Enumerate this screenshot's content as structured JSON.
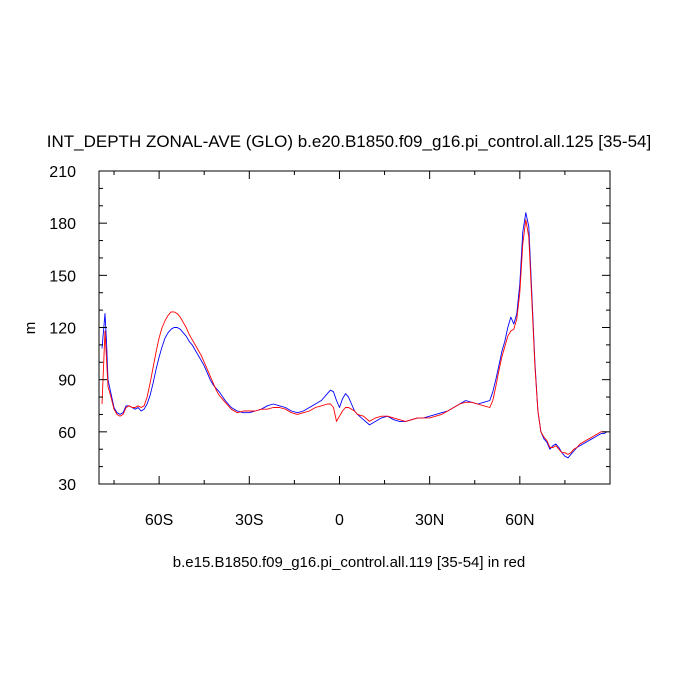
{
  "chart_data": {
    "type": "line",
    "title": "INT_DEPTH ZONAL-AVE (GLO) b.e20.B1850.f09_g16.pi_control.all.125 [35-54]",
    "xlabel": "b.e15.B1850.f09_g16.pi_control.all.119 [35-54] in red",
    "ylabel": "m",
    "xlim": [
      -80,
      90
    ],
    "ylim": [
      30,
      210
    ],
    "xticks": [
      -60,
      -30,
      0,
      30,
      60
    ],
    "xtick_labels": [
      "60S",
      "30S",
      "0",
      "30N",
      "60N"
    ],
    "yticks": [
      30,
      60,
      90,
      120,
      150,
      180,
      210
    ],
    "ytick_labels": [
      "30",
      "60",
      "90",
      "120",
      "150",
      "180",
      "210"
    ],
    "grid": false,
    "series": [
      {
        "color": "#0000ff",
        "x": [
          -79,
          -78,
          -77.5,
          -77,
          -76,
          -75,
          -74,
          -73,
          -72,
          -71,
          -70,
          -69,
          -68,
          -67,
          -66,
          -65,
          -64,
          -63,
          -62,
          -61,
          -60,
          -59,
          -58,
          -57,
          -56,
          -55,
          -54,
          -53,
          -52,
          -51,
          -50,
          -49,
          -48,
          -47,
          -46,
          -45,
          -44,
          -43,
          -42,
          -41,
          -40,
          -38,
          -36,
          -34,
          -32,
          -30,
          -28,
          -26,
          -24,
          -22,
          -20,
          -18,
          -16,
          -14,
          -12,
          -10,
          -8,
          -6,
          -4,
          -3,
          -2,
          -1,
          0,
          1,
          2,
          3,
          4,
          5,
          6,
          8,
          10,
          12,
          14,
          16,
          18,
          20,
          22,
          24,
          26,
          28,
          30,
          32,
          34,
          36,
          38,
          40,
          42,
          44,
          46,
          48,
          50,
          51,
          52,
          53,
          54,
          55,
          56,
          57,
          58,
          59,
          60,
          61,
          62,
          63,
          64,
          65,
          66,
          67,
          68,
          69,
          70,
          71,
          72,
          73,
          74,
          75,
          76,
          77,
          78,
          79,
          80,
          81,
          82,
          83,
          84,
          85,
          86,
          87,
          88,
          89
        ],
        "y": [
          108,
          128,
          112,
          90,
          82,
          74,
          71,
          70,
          71,
          75,
          75,
          74,
          73,
          74,
          72,
          73,
          76,
          81,
          88,
          96,
          103,
          109,
          114,
          117,
          119,
          120,
          120,
          119,
          117,
          115,
          112,
          110,
          107,
          104,
          101,
          98,
          94,
          90,
          87,
          85,
          83,
          78,
          74,
          72,
          71,
          71,
          72,
          73,
          75,
          76,
          75,
          74,
          72,
          71,
          72,
          74,
          76,
          78,
          82,
          84,
          83,
          78,
          74,
          79,
          82,
          80,
          76,
          72,
          70,
          67,
          64,
          66,
          68,
          69,
          67,
          66,
          66,
          67,
          68,
          68,
          69,
          70,
          71,
          72,
          74,
          76,
          78,
          77,
          76,
          77,
          78,
          83,
          90,
          98,
          106,
          112,
          120,
          126,
          122,
          128,
          145,
          175,
          186,
          178,
          140,
          100,
          72,
          60,
          56,
          54,
          50,
          52,
          53,
          51,
          48,
          46,
          45,
          47,
          49,
          51,
          52,
          53,
          54,
          55,
          56,
          57,
          58,
          59,
          59,
          60
        ]
      },
      {
        "color": "#ff0000",
        "x": [
          -79,
          -78,
          -77.5,
          -77,
          -76,
          -75,
          -74,
          -73,
          -72,
          -71,
          -70,
          -69,
          -68,
          -67,
          -66,
          -65,
          -64,
          -63,
          -62,
          -61,
          -60,
          -59,
          -58,
          -57,
          -56,
          -55,
          -54,
          -53,
          -52,
          -51,
          -50,
          -49,
          -48,
          -47,
          -46,
          -45,
          -44,
          -43,
          -42,
          -41,
          -40,
          -38,
          -36,
          -34,
          -32,
          -30,
          -28,
          -26,
          -24,
          -22,
          -20,
          -18,
          -16,
          -14,
          -12,
          -10,
          -8,
          -6,
          -4,
          -3,
          -2,
          -1,
          0,
          1,
          2,
          3,
          4,
          5,
          6,
          8,
          10,
          12,
          14,
          16,
          18,
          20,
          22,
          24,
          26,
          28,
          30,
          32,
          34,
          36,
          38,
          40,
          42,
          44,
          46,
          48,
          50,
          51,
          52,
          53,
          54,
          55,
          56,
          57,
          58,
          59,
          60,
          61,
          62,
          63,
          64,
          65,
          66,
          67,
          68,
          69,
          70,
          71,
          72,
          73,
          74,
          75,
          76,
          77,
          78,
          79,
          80,
          81,
          82,
          83,
          84,
          85,
          86,
          87,
          88,
          89
        ],
        "y": [
          76,
          118,
          102,
          86,
          80,
          73,
          70,
          69,
          70,
          74,
          75,
          74,
          74,
          75,
          74,
          75,
          80,
          88,
          97,
          106,
          114,
          120,
          124,
          127,
          129,
          129,
          128,
          126,
          123,
          120,
          116,
          113,
          110,
          107,
          104,
          100,
          96,
          92,
          88,
          84,
          81,
          77,
          73,
          71,
          72,
          72,
          72,
          73,
          73,
          74,
          74,
          73,
          71,
          70,
          71,
          72,
          74,
          75,
          76,
          76,
          74,
          66,
          69,
          72,
          74,
          74,
          73,
          72,
          70,
          69,
          66,
          68,
          69,
          69,
          68,
          67,
          66,
          67,
          68,
          68,
          68,
          69,
          70,
          72,
          74,
          76,
          77,
          77,
          76,
          75,
          74,
          78,
          86,
          95,
          103,
          109,
          115,
          118,
          119,
          125,
          140,
          168,
          182,
          172,
          136,
          98,
          72,
          60,
          57,
          55,
          51,
          51,
          52,
          50,
          48,
          48,
          47,
          48,
          50,
          51,
          53,
          54,
          55,
          56,
          57,
          58,
          59,
          60,
          60,
          60
        ]
      }
    ]
  }
}
